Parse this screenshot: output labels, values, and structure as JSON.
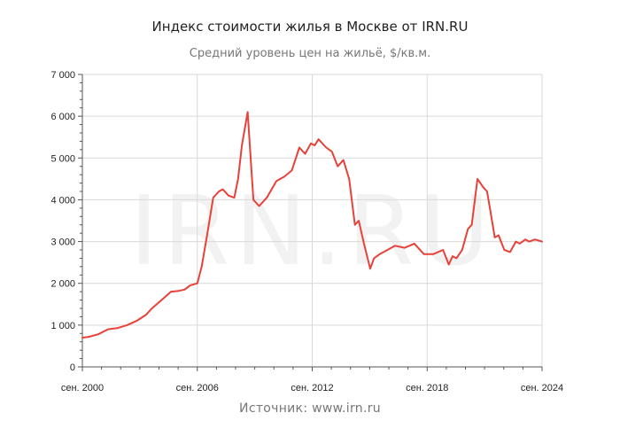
{
  "chart_data": {
    "type": "line",
    "title": "Индекс стоимости жилья в Москве от IRN.RU",
    "subtitle": "Средний уровень цен на жильё, $/кв.м.",
    "source": "Источник: www.irn.ru",
    "watermark": "IRN.RU",
    "ylim": [
      0,
      7000
    ],
    "y_ticks": [
      0,
      1000,
      2000,
      3000,
      4000,
      5000,
      6000,
      7000
    ],
    "y_tick_labels": [
      "0",
      "1 000",
      "2 000",
      "3 000",
      "4 000",
      "5 000",
      "6 000",
      "7 000"
    ],
    "xlim": [
      2000.67,
      2024.67
    ],
    "x_ticks": [
      2000.67,
      2006.67,
      2012.67,
      2018.67,
      2024.67
    ],
    "x_tick_labels": [
      "сен. 2000",
      "сен. 2006",
      "сен. 2012",
      "сен. 2018",
      "сен. 2024"
    ],
    "grid": true,
    "line_color": "#e8413a",
    "series": [
      {
        "x": [
          2000.67,
          2001.0,
          2001.5,
          2002.0,
          2002.5,
          2003.0,
          2003.5,
          2004.0,
          2004.3,
          2004.8,
          2005.3,
          2005.7,
          2006.0,
          2006.3,
          2006.67,
          2006.9,
          2007.2,
          2007.5,
          2007.8,
          2008.0,
          2008.3,
          2008.6,
          2008.8,
          2009.0,
          2009.3,
          2009.6,
          2009.9,
          2010.3,
          2010.8,
          2011.2,
          2011.6,
          2012.0,
          2012.3,
          2012.6,
          2012.8,
          2013.0,
          2013.4,
          2013.7,
          2014.0,
          2014.3,
          2014.6,
          2014.9,
          2015.1,
          2015.4,
          2015.7,
          2015.9,
          2016.2,
          2016.6,
          2017.0,
          2017.5,
          2018.0,
          2018.5,
          2019.0,
          2019.5,
          2019.8,
          2020.0,
          2020.2,
          2020.5,
          2020.8,
          2021.0,
          2021.3,
          2021.6,
          2021.8,
          2022.0,
          2022.2,
          2022.4,
          2022.7,
          2023.0,
          2023.3,
          2023.5,
          2023.8,
          2024.0,
          2024.3,
          2024.67
        ],
        "values": [
          700,
          720,
          780,
          900,
          930,
          1000,
          1100,
          1250,
          1400,
          1600,
          1800,
          1820,
          1850,
          1950,
          2000,
          2400,
          3200,
          4050,
          4200,
          4250,
          4100,
          4050,
          4500,
          5300,
          6100,
          4000,
          3850,
          4050,
          4450,
          4550,
          4700,
          5250,
          5100,
          5350,
          5300,
          5450,
          5250,
          5150,
          4800,
          4950,
          4500,
          3400,
          3500,
          2900,
          2350,
          2600,
          2700,
          2800,
          2900,
          2850,
          2950,
          2700,
          2700,
          2800,
          2450,
          2650,
          2600,
          2800,
          3300,
          3400,
          4500,
          4300,
          4200,
          3650,
          3100,
          3150,
          2800,
          2750,
          3000,
          2950,
          3050,
          3000,
          3050,
          3000
        ]
      }
    ]
  }
}
